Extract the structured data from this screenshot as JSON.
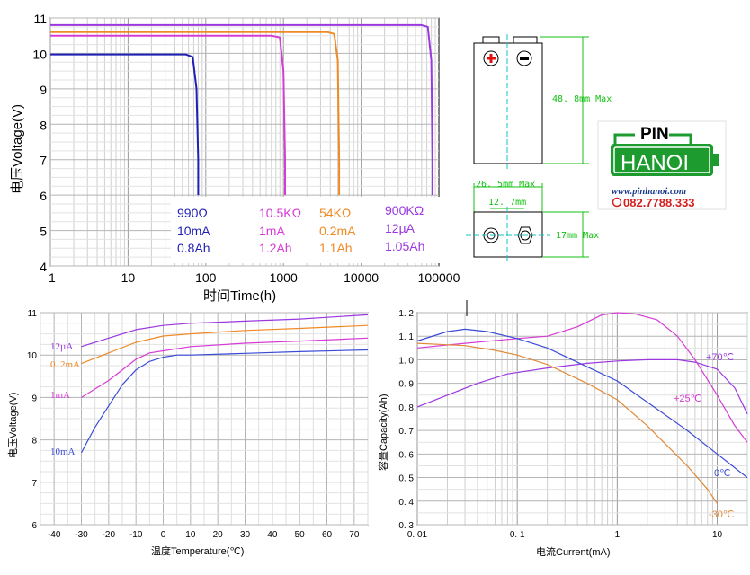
{
  "chart_data": [
    {
      "type": "line",
      "title": "",
      "xlabel": "时间Time(h)",
      "ylabel": "电压Voltage(V)",
      "xscale": "log",
      "xlim": [
        1,
        100000
      ],
      "ylim": [
        4,
        11
      ],
      "x_ticks": [
        "1",
        "10",
        "100",
        "1000",
        "10000",
        "100000"
      ],
      "y_ticks": [
        "4",
        "5",
        "6",
        "7",
        "8",
        "9",
        "10",
        "11"
      ],
      "grid": true,
      "series": [
        {
          "color": "#1f1fb4",
          "label": [
            "990Ω",
            "10mA",
            "0.8Ah"
          ],
          "x": [
            1,
            55,
            68,
            76,
            80,
            80
          ],
          "y": [
            9.97,
            9.97,
            9.9,
            9.0,
            7.0,
            6.0
          ]
        },
        {
          "color": "#d63bd6",
          "label": [
            "10.5KΩ",
            "1mA",
            "1.2Ah"
          ],
          "x": [
            1,
            700,
            900,
            1000,
            1050,
            1050
          ],
          "y": [
            10.5,
            10.5,
            10.45,
            9.5,
            7.0,
            6.0
          ]
        },
        {
          "color": "#f08a24",
          "label": [
            "54KΩ",
            "0.2mA",
            "1.1Ah"
          ],
          "x": [
            1,
            3700,
            4500,
            5000,
            5200,
            5200
          ],
          "y": [
            10.6,
            10.6,
            10.55,
            9.8,
            7.0,
            6.0
          ]
        },
        {
          "color": "#9b38e0",
          "label": [
            "900KΩ",
            "12µA",
            "1.05Ah"
          ],
          "x": [
            1,
            60000,
            72000,
            80000,
            83000,
            83000
          ],
          "y": [
            10.8,
            10.8,
            10.75,
            9.8,
            7.0,
            6.0
          ]
        }
      ]
    },
    {
      "type": "line",
      "title": "",
      "xlabel": "温度Temperature(℃)",
      "ylabel": "电压Voltage(V)",
      "xlim": [
        -45,
        75
      ],
      "ylim": [
        6,
        11
      ],
      "x_ticks": [
        "-40",
        "-30",
        "-20",
        "-10",
        "0",
        "10",
        "20",
        "30",
        "40",
        "50",
        "60",
        "70"
      ],
      "y_ticks": [
        "6",
        "7",
        "8",
        "9",
        "10",
        "11"
      ],
      "grid": true,
      "series": [
        {
          "color": "#9b38e0",
          "label": "12µA",
          "x": [
            -30,
            -20,
            -10,
            0,
            10,
            30,
            50,
            75
          ],
          "y": [
            10.2,
            10.4,
            10.6,
            10.7,
            10.75,
            10.8,
            10.85,
            10.95
          ]
        },
        {
          "color": "#f08a24",
          "label": "0. 2mA",
          "x": [
            -30,
            -20,
            -10,
            0,
            10,
            30,
            50,
            75
          ],
          "y": [
            9.8,
            10.05,
            10.3,
            10.45,
            10.5,
            10.58,
            10.63,
            10.7
          ]
        },
        {
          "color": "#d63bd6",
          "label": "1mA",
          "x": [
            -30,
            -20,
            -10,
            -5,
            0,
            10,
            30,
            50,
            75
          ],
          "y": [
            9.0,
            9.4,
            9.9,
            10.05,
            10.1,
            10.2,
            10.28,
            10.33,
            10.4
          ]
        },
        {
          "color": "#3b4cd6",
          "label": "10mA",
          "x": [
            -30,
            -25,
            -20,
            -15,
            -10,
            -5,
            0,
            5,
            10,
            30,
            50,
            75
          ],
          "y": [
            7.7,
            8.3,
            8.8,
            9.3,
            9.65,
            9.85,
            9.95,
            10.0,
            10.0,
            10.04,
            10.08,
            10.12
          ]
        }
      ]
    },
    {
      "type": "line",
      "title": "",
      "xlabel": "电流Current(mA)",
      "ylabel": "容量Capacity(Ah)",
      "xscale": "log",
      "xlim": [
        0.01,
        20
      ],
      "ylim": [
        0.3,
        1.2
      ],
      "x_ticks": [
        "0. 01",
        "0. 1",
        "1",
        "10"
      ],
      "y_ticks": [
        "0. 3",
        "0. 4",
        "0. 5",
        "0. 6",
        "0. 7",
        "0. 8",
        "0. 9",
        "1. 0",
        "1. 1",
        "1. 2"
      ],
      "grid": true,
      "series": [
        {
          "color": "#9b38e0",
          "label": "+70℃",
          "x": [
            0.01,
            0.02,
            0.04,
            0.08,
            0.2,
            0.5,
            1,
            2,
            4,
            6,
            10,
            15,
            20
          ],
          "y": [
            0.8,
            0.85,
            0.9,
            0.94,
            0.965,
            0.985,
            0.995,
            1.0,
            1.0,
            0.99,
            0.96,
            0.88,
            0.77
          ]
        },
        {
          "color": "#d63bd6",
          "label": "+25℃",
          "x": [
            0.01,
            0.03,
            0.1,
            0.2,
            0.4,
            0.7,
            1,
            1.5,
            2.5,
            4,
            6,
            10,
            15,
            20
          ],
          "y": [
            1.05,
            1.07,
            1.09,
            1.1,
            1.14,
            1.19,
            1.2,
            1.195,
            1.17,
            1.1,
            1.0,
            0.85,
            0.72,
            0.65
          ]
        },
        {
          "color": "#3b4cd6",
          "label": "0℃",
          "x": [
            0.01,
            0.02,
            0.03,
            0.05,
            0.1,
            0.2,
            0.5,
            1,
            2,
            5,
            10,
            20
          ],
          "y": [
            1.08,
            1.12,
            1.13,
            1.12,
            1.09,
            1.05,
            0.97,
            0.91,
            0.82,
            0.7,
            0.6,
            0.5
          ]
        },
        {
          "color": "#e08a3a",
          "label": "-30℃",
          "x": [
            0.01,
            0.03,
            0.06,
            0.1,
            0.2,
            0.5,
            1,
            2,
            5,
            8,
            10
          ],
          "y": [
            1.07,
            1.06,
            1.04,
            1.02,
            0.98,
            0.9,
            0.83,
            0.72,
            0.55,
            0.45,
            0.39
          ]
        }
      ]
    }
  ],
  "battery": {
    "plus": "+",
    "minus": "−",
    "height": "48. 8mm  Max",
    "width": "26. 5mm  Max",
    "spacing": "12. 7mm",
    "depth": "17mm  Max"
  },
  "brand": {
    "top": "PIN",
    "name": "HANOI",
    "url": "www.pinhanoi.com",
    "phone": "082.7788.333",
    "color": "#1d9b2e",
    "phone_color": "#d42020"
  }
}
